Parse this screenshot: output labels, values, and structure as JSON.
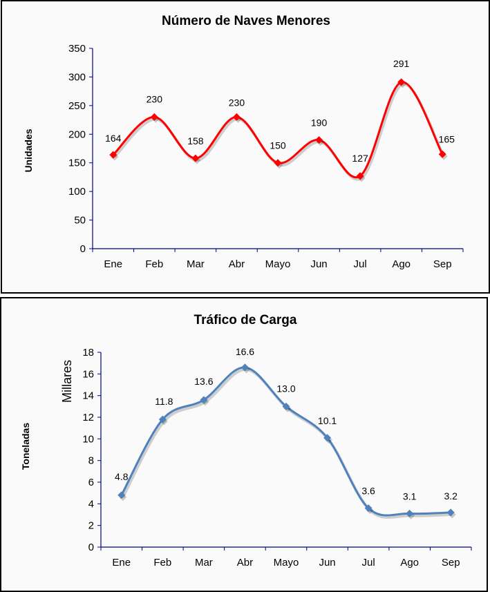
{
  "chart_data": [
    {
      "type": "line",
      "title": "Número de Naves Menores",
      "xlabel": "",
      "ylabel": "Unidades",
      "categories": [
        "Ene",
        "Feb",
        "Mar",
        "Abr",
        "Mayo",
        "Jun",
        "Jul",
        "Ago",
        "Sep"
      ],
      "series": [
        {
          "name": "Naves Menores",
          "values": [
            164,
            230,
            158,
            230,
            150,
            190,
            127,
            291,
            165
          ],
          "labels": [
            "164",
            "230",
            "158",
            "230",
            "150",
            "190",
            "127",
            "291",
            "165"
          ],
          "color": "#ff0000"
        }
      ],
      "ylim": [
        0,
        350
      ],
      "yticks": [
        "0",
        "50",
        "100",
        "150",
        "200",
        "250",
        "300",
        "350"
      ],
      "grid": false,
      "smooth": true,
      "marker": "diamond"
    },
    {
      "type": "line",
      "title": "Tráfico de Carga",
      "xlabel": "",
      "ylabel": "Toneladas",
      "yunits": "Millares",
      "categories": [
        "Ene",
        "Feb",
        "Mar",
        "Abr",
        "Mayo",
        "Jun",
        "Jul",
        "Ago",
        "Sep"
      ],
      "series": [
        {
          "name": "Tráfico de Carga",
          "values": [
            4.8,
            11.8,
            13.6,
            16.6,
            13.0,
            10.1,
            3.6,
            3.1,
            3.2
          ],
          "labels": [
            "4.8",
            "11.8",
            "13.6",
            "16.6",
            "13.0",
            "10.1",
            "3.6",
            "3.1",
            "3.2"
          ],
          "color": "#4f81bd"
        }
      ],
      "ylim": [
        0,
        18
      ],
      "yticks": [
        "0",
        "2",
        "4",
        "6",
        "8",
        "10",
        "12",
        "14",
        "16",
        "18"
      ],
      "grid": false,
      "smooth": true,
      "marker": "diamond"
    }
  ],
  "axis_color": "#000080"
}
